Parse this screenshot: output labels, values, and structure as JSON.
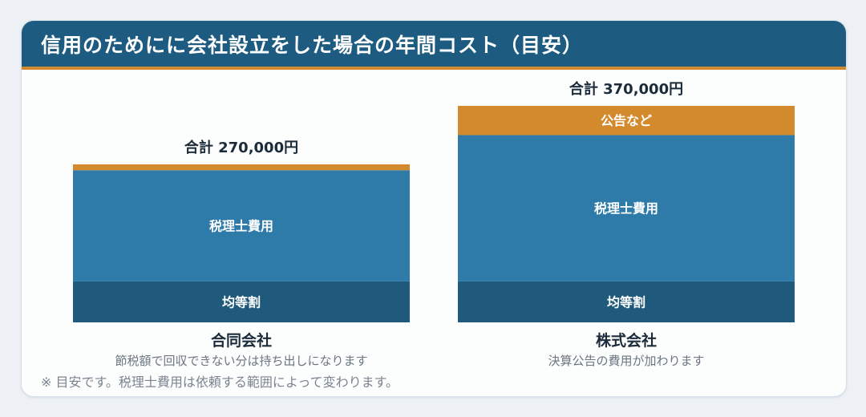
{
  "title": "信用のためにに会社設立をした場合の年間コスト（目安）",
  "footnote": "※ 目安です。税理士費用は依頼する範囲によって変わります。",
  "colors": {
    "header": "#1d5b80",
    "accent": "#d38a2d",
    "tax_fee": "#2e7aa9",
    "equal_levy": "#1f5a7d",
    "notice": "#d38a2d"
  },
  "chart_data": {
    "type": "stacked-bar",
    "categories": [
      "合同会社",
      "株式会社"
    ],
    "category_notes": [
      "節税額で回収できない分は持ち出しになります",
      "決算公告の費用が加わります"
    ],
    "totals": [
      "合計 270,000円",
      "合計 370,000円"
    ],
    "total_values": [
      270000,
      370000
    ],
    "series": [
      {
        "name": "均等割",
        "values": [
          70000,
          70000
        ]
      },
      {
        "name": "税理士費用",
        "values": [
          190000,
          250000
        ]
      },
      {
        "name": "公告など",
        "values": [
          10000,
          50000
        ]
      }
    ],
    "ylim": [
      0,
      370000
    ]
  }
}
